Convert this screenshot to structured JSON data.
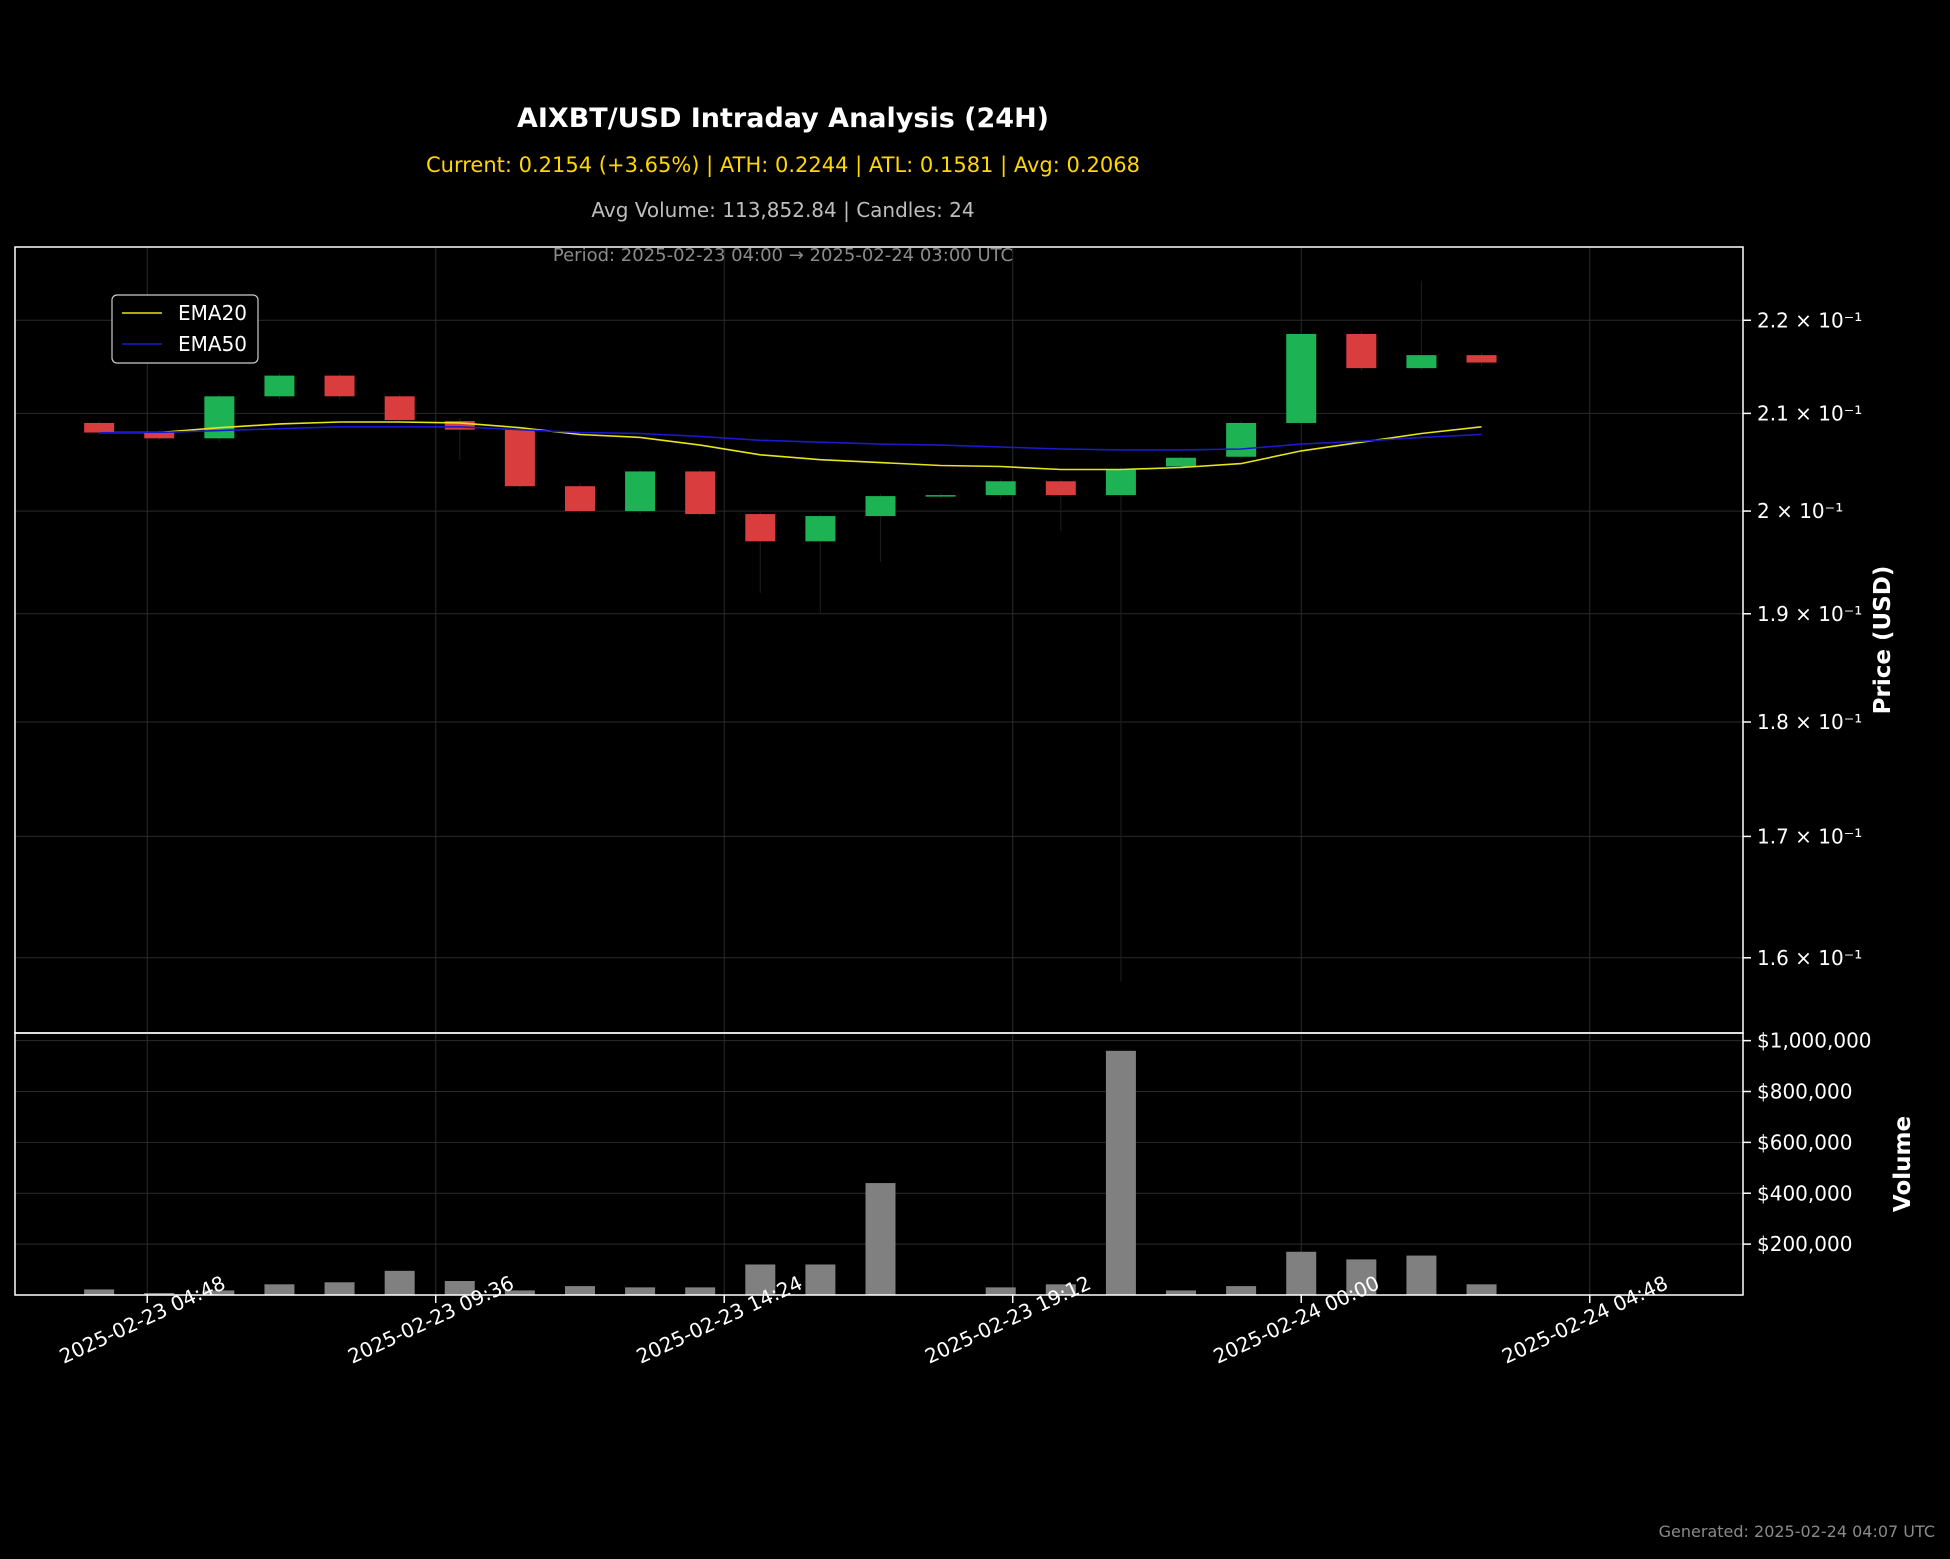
{
  "header": {
    "title": "AIXBT/USD Intraday Analysis (24H)",
    "stats_line": "Current: 0.2154 (+3.65%) | ATH: 0.2244 | ATL: 0.1581 | Avg: 0.2068",
    "volume_line": "Avg Volume: 113,852.84 | Candles: 24",
    "period_line": "Period: 2025-02-23 04:00 → 2025-02-24 03:00 UTC"
  },
  "footer": {
    "generated": "Generated: 2025-02-24 04:07 UTC"
  },
  "colors": {
    "background": "#000000",
    "up": "#1db354",
    "down": "#d93d3d",
    "ema20": "#e5e51a",
    "ema50": "#1a1acc",
    "volume": "#808080",
    "axis": "#ffffff",
    "grid": "#2a2a2a"
  },
  "chart_data": [
    {
      "type": "candlestick",
      "panel": "price",
      "ylabel": "Price (USD)",
      "yscale": "log",
      "ylim": [
        0.1541,
        0.2282
      ],
      "grid": true,
      "legend": {
        "placement": "upper-left",
        "entries": [
          "EMA20",
          "EMA50"
        ]
      },
      "yticks": [
        {
          "value": 0.16,
          "label": "1.6 × 10⁻¹"
        },
        {
          "value": 0.17,
          "label": "1.7 × 10⁻¹"
        },
        {
          "value": 0.18,
          "label": "1.8 × 10⁻¹"
        },
        {
          "value": 0.19,
          "label": "1.9 × 10⁻¹"
        },
        {
          "value": 0.2,
          "label": "2 × 10⁻¹"
        },
        {
          "value": 0.21,
          "label": "2.1 × 10⁻¹"
        },
        {
          "value": 0.22,
          "label": "2.2 × 10⁻¹"
        }
      ],
      "candles": [
        {
          "time": "2025-02-23 04:00",
          "open": 0.209,
          "high": 0.2092,
          "low": 0.2078,
          "close": 0.208
        },
        {
          "time": "2025-02-23 05:00",
          "open": 0.208,
          "high": 0.2082,
          "low": 0.2072,
          "close": 0.2074
        },
        {
          "time": "2025-02-23 06:00",
          "open": 0.2074,
          "high": 0.212,
          "low": 0.207,
          "close": 0.2118
        },
        {
          "time": "2025-02-23 07:00",
          "open": 0.2118,
          "high": 0.2143,
          "low": 0.2115,
          "close": 0.214
        },
        {
          "time": "2025-02-23 08:00",
          "open": 0.214,
          "high": 0.2142,
          "low": 0.2115,
          "close": 0.2118
        },
        {
          "time": "2025-02-23 09:00",
          "open": 0.2118,
          "high": 0.212,
          "low": 0.209,
          "close": 0.2093
        },
        {
          "time": "2025-02-23 10:00",
          "open": 0.2092,
          "high": 0.2095,
          "low": 0.2052,
          "close": 0.2083
        },
        {
          "time": "2025-02-23 11:00",
          "open": 0.2083,
          "high": 0.2085,
          "low": 0.2022,
          "close": 0.2025
        },
        {
          "time": "2025-02-23 12:00",
          "open": 0.2025,
          "high": 0.2028,
          "low": 0.1998,
          "close": 0.2
        },
        {
          "time": "2025-02-23 13:00",
          "open": 0.2,
          "high": 0.2042,
          "low": 0.1997,
          "close": 0.204
        },
        {
          "time": "2025-02-23 14:00",
          "open": 0.204,
          "high": 0.2042,
          "low": 0.1995,
          "close": 0.1997
        },
        {
          "time": "2025-02-23 15:00",
          "open": 0.1997,
          "high": 0.1999,
          "low": 0.192,
          "close": 0.197
        },
        {
          "time": "2025-02-23 16:00",
          "open": 0.197,
          "high": 0.1997,
          "low": 0.19,
          "close": 0.1995
        },
        {
          "time": "2025-02-23 17:00",
          "open": 0.1995,
          "high": 0.2017,
          "low": 0.195,
          "close": 0.2015
        },
        {
          "time": "2025-02-23 18:00",
          "open": 0.2015,
          "high": 0.2018,
          "low": 0.2013,
          "close": 0.2016
        },
        {
          "time": "2025-02-23 19:00",
          "open": 0.2016,
          "high": 0.2032,
          "low": 0.2012,
          "close": 0.203
        },
        {
          "time": "2025-02-23 20:00",
          "open": 0.203,
          "high": 0.2032,
          "low": 0.198,
          "close": 0.2016
        },
        {
          "time": "2025-02-23 21:00",
          "open": 0.2016,
          "high": 0.2045,
          "low": 0.1581,
          "close": 0.2042
        },
        {
          "time": "2025-02-23 22:00",
          "open": 0.2045,
          "high": 0.2055,
          "low": 0.2043,
          "close": 0.2054
        },
        {
          "time": "2025-02-23 23:00",
          "open": 0.2055,
          "high": 0.2092,
          "low": 0.2053,
          "close": 0.209
        },
        {
          "time": "2025-02-24 00:00",
          "open": 0.209,
          "high": 0.2186,
          "low": 0.2088,
          "close": 0.2185
        },
        {
          "time": "2025-02-24 01:00",
          "open": 0.2185,
          "high": 0.2188,
          "low": 0.2145,
          "close": 0.2148
        },
        {
          "time": "2025-02-24 02:00",
          "open": 0.2148,
          "high": 0.2244,
          "low": 0.2146,
          "close": 0.2162
        },
        {
          "time": "2025-02-24 03:00",
          "open": 0.2162,
          "high": 0.2165,
          "low": 0.215,
          "close": 0.2154
        }
      ],
      "series": [
        {
          "name": "EMA20",
          "values": [
            0.208,
            0.208,
            0.2085,
            0.2089,
            0.2091,
            0.2091,
            0.209,
            0.2085,
            0.2078,
            0.2075,
            0.2067,
            0.2057,
            0.2052,
            0.2049,
            0.2046,
            0.2045,
            0.2042,
            0.2042,
            0.2044,
            0.2048,
            0.2061,
            0.207,
            0.2079,
            0.2086
          ]
        },
        {
          "name": "EMA50",
          "values": [
            0.208,
            0.208,
            0.2082,
            0.2084,
            0.2086,
            0.2086,
            0.2086,
            0.2083,
            0.208,
            0.2079,
            0.2076,
            0.2072,
            0.207,
            0.2068,
            0.2067,
            0.2065,
            0.2063,
            0.2062,
            0.2062,
            0.2063,
            0.2068,
            0.2071,
            0.2075,
            0.2078
          ]
        }
      ]
    },
    {
      "type": "bar",
      "panel": "volume",
      "ylabel": "Volume",
      "ylim": [
        0,
        1030000
      ],
      "grid": true,
      "yticks": [
        {
          "value": 200000,
          "label": "$200,000"
        },
        {
          "value": 400000,
          "label": "$400,000"
        },
        {
          "value": 600000,
          "label": "$600,000"
        },
        {
          "value": 800000,
          "label": "$800,000"
        },
        {
          "value": 1000000,
          "label": "$1,000,000"
        }
      ],
      "values": [
        22000,
        8000,
        18000,
        42000,
        50000,
        95000,
        55000,
        18000,
        35000,
        30000,
        30000,
        120000,
        120000,
        440000,
        2000,
        30000,
        42000,
        960000,
        18000,
        35000,
        170000,
        140000,
        155000,
        42000
      ],
      "xticks": [
        {
          "time": "2025-02-23 04:48",
          "label": "2025-02-23 04:48"
        },
        {
          "time": "2025-02-23 09:36",
          "label": "2025-02-23 09:36"
        },
        {
          "time": "2025-02-23 14:24",
          "label": "2025-02-23 14:24"
        },
        {
          "time": "2025-02-23 19:12",
          "label": "2025-02-23 19:12"
        },
        {
          "time": "2025-02-24 00:00",
          "label": "2025-02-24 00:00"
        },
        {
          "time": "2025-02-24 04:48",
          "label": "2025-02-24 04:48"
        }
      ]
    }
  ]
}
